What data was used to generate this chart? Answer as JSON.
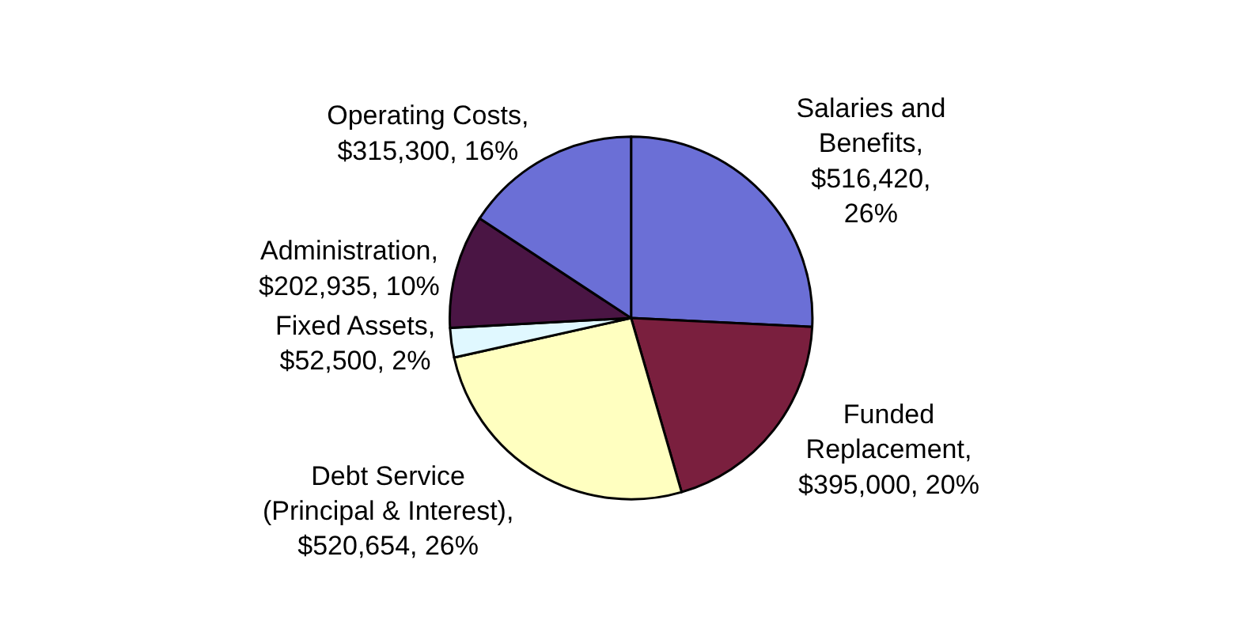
{
  "chart_data": {
    "type": "pie",
    "categories": [
      "Salaries and\nBenefits",
      "Funded\nReplacement",
      "Debt Service\n(Principal & Interest)",
      "Fixed Assets",
      "Administration",
      "Operating Costs"
    ],
    "values": [
      516420,
      395000,
      520654,
      52500,
      202935,
      315300
    ],
    "value_labels": [
      ",\n$516,420,\n26%",
      ",\n$395,000, 20%",
      ",\n$520,654, 26%",
      ",\n$52,500, 2%",
      ",\n$202,935, 10%",
      ",\n$315,300, 16%"
    ],
    "colors": [
      "#6b6fd6",
      "#7a1f3e",
      "#ffffc0",
      "#e0f8ff",
      "#4a1544",
      "#6b6fd6"
    ],
    "legend": false
  }
}
